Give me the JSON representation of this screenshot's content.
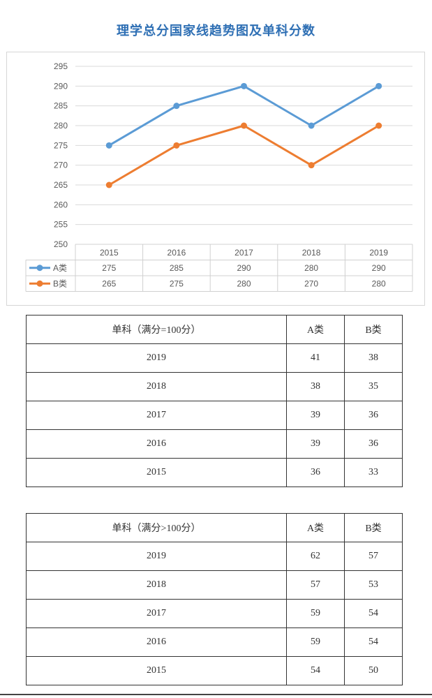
{
  "page": {
    "title": "理学总分国家线趋势图及单科分数"
  },
  "chart_data": {
    "type": "line",
    "title": "",
    "categories": [
      "2015",
      "2016",
      "2017",
      "2018",
      "2019"
    ],
    "ylim": [
      250,
      295
    ],
    "yticks": [
      250,
      255,
      260,
      265,
      270,
      275,
      280,
      285,
      290,
      295
    ],
    "grid": true,
    "legend": "data-table",
    "series": [
      {
        "name": "A类",
        "color": "#5b9bd5",
        "values": [
          275,
          285,
          290,
          280,
          290
        ]
      },
      {
        "name": "B类",
        "color": "#ed7d31",
        "values": [
          265,
          275,
          280,
          270,
          280
        ]
      }
    ]
  },
  "tables": [
    {
      "header": [
        "单科（满分=100分）",
        "A类",
        "B类"
      ],
      "rows": [
        [
          "2019",
          "41",
          "38"
        ],
        [
          "2018",
          "38",
          "35"
        ],
        [
          "2017",
          "39",
          "36"
        ],
        [
          "2016",
          "39",
          "36"
        ],
        [
          "2015",
          "36",
          "33"
        ]
      ]
    },
    {
      "header": [
        "单科（满分>100分）",
        "A类",
        "B类"
      ],
      "rows": [
        [
          "2019",
          "62",
          "57"
        ],
        [
          "2018",
          "57",
          "53"
        ],
        [
          "2017",
          "59",
          "54"
        ],
        [
          "2016",
          "59",
          "54"
        ],
        [
          "2015",
          "54",
          "50"
        ]
      ]
    }
  ]
}
